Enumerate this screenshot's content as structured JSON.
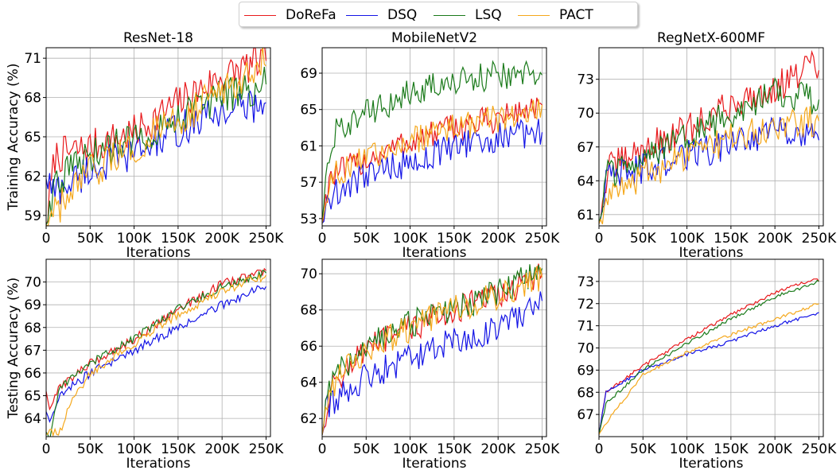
{
  "legend": [
    {
      "name": "DoReFa",
      "color": "#e8191c"
    },
    {
      "name": "DSQ",
      "color": "#1414e6"
    },
    {
      "name": "LSQ",
      "color": "#1a7a1a"
    },
    {
      "name": "PACT",
      "color": "#f5a81c"
    }
  ],
  "chart_data": [
    {
      "type": "line",
      "row": "Training",
      "title": "ResNet-18",
      "xlabel": "Iterations",
      "ylabel": "Training Accuracy (%)",
      "xlim": [
        0,
        255000
      ],
      "ylim": [
        58.2,
        71.8
      ],
      "xticks": [
        0,
        50000,
        100000,
        150000,
        200000,
        250000
      ],
      "xtick_labels": [
        "0",
        "50K",
        "100K",
        "150K",
        "200K",
        "250K"
      ],
      "yticks": [
        59,
        62,
        65,
        68,
        71
      ],
      "ytick_labels": [
        "59",
        "62",
        "65",
        "68",
        "71"
      ],
      "grid": true,
      "noise": 1.4,
      "series": [
        {
          "name": "DoReFa",
          "anchors": [
            [
              0,
              58.3
            ],
            [
              10000,
              63.5
            ],
            [
              50000,
              64.2
            ],
            [
              100000,
              65.3
            ],
            [
              150000,
              67.6
            ],
            [
              200000,
              69.6
            ],
            [
              235000,
              70.5
            ],
            [
              250000,
              70.8
            ]
          ]
        },
        {
          "name": "DSQ",
          "anchors": [
            [
              0,
              61.8
            ],
            [
              10000,
              60.8
            ],
            [
              50000,
              62.5
            ],
            [
              100000,
              63.8
            ],
            [
              150000,
              65.5
            ],
            [
              200000,
              67.0
            ],
            [
              250000,
              67.6
            ]
          ]
        },
        {
          "name": "LSQ",
          "anchors": [
            [
              0,
              58.3
            ],
            [
              10000,
              61.6
            ],
            [
              50000,
              63.5
            ],
            [
              100000,
              64.8
            ],
            [
              150000,
              66.6
            ],
            [
              200000,
              68.1
            ],
            [
              250000,
              69.0
            ]
          ]
        },
        {
          "name": "PACT",
          "anchors": [
            [
              0,
              58.3
            ],
            [
              15000,
              59.5
            ],
            [
              50000,
              62.2
            ],
            [
              100000,
              64.2
            ],
            [
              150000,
              66.3
            ],
            [
              200000,
              68.5
            ],
            [
              245000,
              70.8
            ],
            [
              250000,
              70.4
            ]
          ]
        }
      ]
    },
    {
      "type": "line",
      "row": "Training",
      "title": "MobileNetV2",
      "xlabel": "Iterations",
      "ylabel": "",
      "xlim": [
        0,
        255000
      ],
      "ylim": [
        52.2,
        71.8
      ],
      "xticks": [
        0,
        50000,
        100000,
        150000,
        200000,
        250000
      ],
      "xtick_labels": [
        "0",
        "50K",
        "100K",
        "150K",
        "200K",
        "250K"
      ],
      "yticks": [
        53,
        57,
        61,
        65,
        69
      ],
      "ytick_labels": [
        "53",
        "57",
        "61",
        "65",
        "69"
      ],
      "grid": true,
      "noise": 1.6,
      "series": [
        {
          "name": "DoReFa",
          "anchors": [
            [
              0,
              52.5
            ],
            [
              8000,
              57.5
            ],
            [
              50000,
              59.5
            ],
            [
              100000,
              61.5
            ],
            [
              150000,
              63.0
            ],
            [
              200000,
              64.0
            ],
            [
              250000,
              65.5
            ]
          ]
        },
        {
          "name": "DSQ",
          "anchors": [
            [
              0,
              52.5
            ],
            [
              8000,
              55.5
            ],
            [
              50000,
              57.8
            ],
            [
              100000,
              59.2
            ],
            [
              150000,
              60.8
            ],
            [
              200000,
              62.0
            ],
            [
              250000,
              62.5
            ]
          ]
        },
        {
          "name": "LSQ",
          "anchors": [
            [
              0,
              52.5
            ],
            [
              5000,
              59.0
            ],
            [
              15000,
              62.5
            ],
            [
              50000,
              64.5
            ],
            [
              100000,
              66.8
            ],
            [
              150000,
              68.0
            ],
            [
              200000,
              68.8
            ],
            [
              250000,
              68.8
            ]
          ]
        },
        {
          "name": "PACT",
          "anchors": [
            [
              0,
              52.5
            ],
            [
              8000,
              57.5
            ],
            [
              50000,
              59.5
            ],
            [
              100000,
              61.5
            ],
            [
              150000,
              63.0
            ],
            [
              200000,
              64.0
            ],
            [
              250000,
              65.5
            ]
          ]
        }
      ]
    },
    {
      "type": "line",
      "row": "Training",
      "title": "RegNetX-600MF",
      "xlabel": "Iterations",
      "ylabel": "",
      "xlim": [
        0,
        255000
      ],
      "ylim": [
        60.0,
        75.8
      ],
      "xticks": [
        0,
        50000,
        100000,
        150000,
        200000,
        250000
      ],
      "xtick_labels": [
        "0",
        "50K",
        "100K",
        "150K",
        "200K",
        "250K"
      ],
      "yticks": [
        61,
        64,
        67,
        70,
        73
      ],
      "ytick_labels": [
        "61",
        "64",
        "67",
        "70",
        "73"
      ],
      "grid": true,
      "noise": 1.4,
      "series": [
        {
          "name": "DoReFa",
          "anchors": [
            [
              0,
              60.2
            ],
            [
              10000,
              65.0
            ],
            [
              50000,
              66.8
            ],
            [
              100000,
              68.5
            ],
            [
              150000,
              70.8
            ],
            [
              200000,
              72.2
            ],
            [
              245000,
              74.3
            ],
            [
              250000,
              73.8
            ]
          ]
        },
        {
          "name": "DSQ",
          "anchors": [
            [
              0,
              60.2
            ],
            [
              10000,
              64.5
            ],
            [
              50000,
              65.0
            ],
            [
              100000,
              66.2
            ],
            [
              150000,
              67.3
            ],
            [
              200000,
              68.5
            ],
            [
              250000,
              67.6
            ]
          ]
        },
        {
          "name": "LSQ",
          "anchors": [
            [
              0,
              60.2
            ],
            [
              10000,
              64.5
            ],
            [
              50000,
              65.8
            ],
            [
              100000,
              67.8
            ],
            [
              150000,
              70.0
            ],
            [
              200000,
              71.8
            ],
            [
              250000,
              71.2
            ]
          ]
        },
        {
          "name": "PACT",
          "anchors": [
            [
              0,
              60.2
            ],
            [
              10000,
              62.5
            ],
            [
              50000,
              64.5
            ],
            [
              100000,
              66.0
            ],
            [
              150000,
              67.8
            ],
            [
              200000,
              69.0
            ],
            [
              250000,
              69.3
            ]
          ]
        }
      ]
    },
    {
      "type": "line",
      "row": "Testing",
      "title": "",
      "xlabel": "Iterations",
      "ylabel": "Testing Accuracy (%)",
      "xlim": [
        0,
        255000
      ],
      "ylim": [
        63.2,
        71.0
      ],
      "xticks": [
        0,
        50000,
        100000,
        150000,
        200000,
        250000
      ],
      "xtick_labels": [
        "0",
        "50K",
        "100K",
        "150K",
        "200K",
        "250K"
      ],
      "yticks": [
        64,
        65,
        66,
        67,
        68,
        69,
        70
      ],
      "ytick_labels": [
        "64",
        "65",
        "66",
        "67",
        "68",
        "69",
        "70"
      ],
      "grid": true,
      "noise": 0.2,
      "series": [
        {
          "name": "DoReFa",
          "anchors": [
            [
              0,
              65.2
            ],
            [
              5000,
              64.3
            ],
            [
              15000,
              65.4
            ],
            [
              50000,
              66.4
            ],
            [
              100000,
              67.5
            ],
            [
              150000,
              68.8
            ],
            [
              200000,
              69.9
            ],
            [
              250000,
              70.5
            ]
          ]
        },
        {
          "name": "DSQ",
          "anchors": [
            [
              0,
              64.3
            ],
            [
              5000,
              63.9
            ],
            [
              15000,
              65.0
            ],
            [
              50000,
              66.0
            ],
            [
              100000,
              67.0
            ],
            [
              150000,
              68.0
            ],
            [
              200000,
              69.0
            ],
            [
              250000,
              69.8
            ]
          ]
        },
        {
          "name": "LSQ",
          "anchors": [
            [
              0,
              63.4
            ],
            [
              4000,
              63.2
            ],
            [
              15000,
              65.3
            ],
            [
              50000,
              66.4
            ],
            [
              100000,
              67.5
            ],
            [
              150000,
              68.8
            ],
            [
              200000,
              69.8
            ],
            [
              250000,
              70.4
            ]
          ]
        },
        {
          "name": "PACT",
          "anchors": [
            [
              0,
              63.3
            ],
            [
              15000,
              63.4
            ],
            [
              30000,
              64.8
            ],
            [
              50000,
              66.0
            ],
            [
              100000,
              67.3
            ],
            [
              150000,
              68.6
            ],
            [
              200000,
              69.6
            ],
            [
              250000,
              70.3
            ]
          ]
        }
      ]
    },
    {
      "type": "line",
      "row": "Testing",
      "title": "",
      "xlabel": "Iterations",
      "ylabel": "",
      "xlim": [
        0,
        255000
      ],
      "ylim": [
        61.0,
        70.8
      ],
      "xticks": [
        0,
        50000,
        100000,
        150000,
        200000,
        250000
      ],
      "xtick_labels": [
        "0",
        "50K",
        "100K",
        "150K",
        "200K",
        "250K"
      ],
      "yticks": [
        62,
        64,
        66,
        68,
        70
      ],
      "ytick_labels": [
        "62",
        "64",
        "66",
        "68",
        "70"
      ],
      "grid": true,
      "noise": 0.8,
      "series": [
        {
          "name": "DoReFa",
          "anchors": [
            [
              0,
              61.1
            ],
            [
              5000,
              62.5
            ],
            [
              15000,
              64.2
            ],
            [
              50000,
              65.8
            ],
            [
              100000,
              67.0
            ],
            [
              150000,
              68.0
            ],
            [
              200000,
              68.8
            ],
            [
              250000,
              70.0
            ]
          ]
        },
        {
          "name": "DSQ",
          "anchors": [
            [
              0,
              61.1
            ],
            [
              5000,
              62.5
            ],
            [
              15000,
              63.0
            ],
            [
              50000,
              64.3
            ],
            [
              100000,
              65.3
            ],
            [
              150000,
              66.3
            ],
            [
              200000,
              67.0
            ],
            [
              250000,
              68.5
            ]
          ]
        },
        {
          "name": "LSQ",
          "anchors": [
            [
              0,
              61.1
            ],
            [
              5000,
              62.8
            ],
            [
              15000,
              64.5
            ],
            [
              50000,
              66.0
            ],
            [
              100000,
              67.2
            ],
            [
              150000,
              68.1
            ],
            [
              200000,
              69.0
            ],
            [
              250000,
              70.3
            ]
          ]
        },
        {
          "name": "PACT",
          "anchors": [
            [
              0,
              61.1
            ],
            [
              5000,
              62.5
            ],
            [
              15000,
              64.2
            ],
            [
              50000,
              65.8
            ],
            [
              100000,
              67.0
            ],
            [
              150000,
              68.0
            ],
            [
              200000,
              68.8
            ],
            [
              250000,
              69.8
            ]
          ]
        }
      ]
    },
    {
      "type": "line",
      "row": "Testing",
      "title": "",
      "xlabel": "Iterations",
      "ylabel": "",
      "xlim": [
        0,
        255000
      ],
      "ylim": [
        66.0,
        74.0
      ],
      "xticks": [
        0,
        50000,
        100000,
        150000,
        200000,
        250000
      ],
      "xtick_labels": [
        "0",
        "50K",
        "100K",
        "150K",
        "200K",
        "250K"
      ],
      "yticks": [
        67,
        68,
        69,
        70,
        71,
        72,
        73
      ],
      "ytick_labels": [
        "67",
        "68",
        "69",
        "70",
        "71",
        "72",
        "73"
      ],
      "grid": true,
      "noise": 0.08,
      "series": [
        {
          "name": "DoReFa",
          "anchors": [
            [
              0,
              66.1
            ],
            [
              8000,
              68.0
            ],
            [
              50000,
              69.2
            ],
            [
              100000,
              70.4
            ],
            [
              150000,
              71.5
            ],
            [
              200000,
              72.5
            ],
            [
              245000,
              73.1
            ],
            [
              250000,
              73.0
            ]
          ]
        },
        {
          "name": "DSQ",
          "anchors": [
            [
              0,
              66.1
            ],
            [
              8000,
              68.0
            ],
            [
              50000,
              69.0
            ],
            [
              100000,
              69.7
            ],
            [
              150000,
              70.3
            ],
            [
              200000,
              71.0
            ],
            [
              250000,
              71.6
            ]
          ]
        },
        {
          "name": "LSQ",
          "anchors": [
            [
              0,
              66.1
            ],
            [
              8000,
              67.5
            ],
            [
              50000,
              69.0
            ],
            [
              100000,
              70.2
            ],
            [
              150000,
              71.3
            ],
            [
              200000,
              72.3
            ],
            [
              250000,
              73.0
            ]
          ]
        },
        {
          "name": "PACT",
          "anchors": [
            [
              0,
              66.1
            ],
            [
              15000,
              67.0
            ],
            [
              50000,
              68.8
            ],
            [
              100000,
              69.8
            ],
            [
              150000,
              70.6
            ],
            [
              200000,
              71.3
            ],
            [
              250000,
              72.0
            ]
          ]
        }
      ]
    }
  ]
}
